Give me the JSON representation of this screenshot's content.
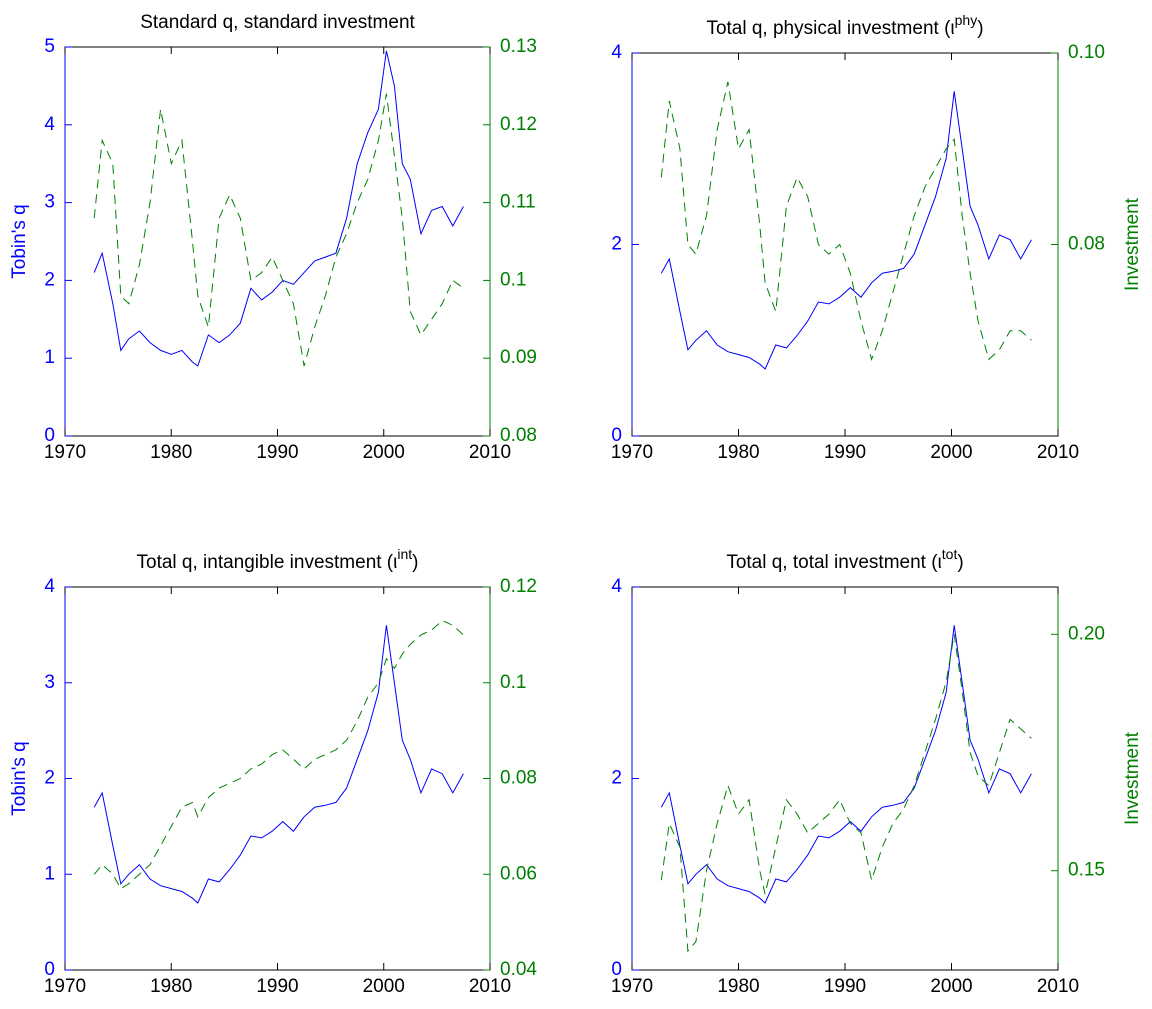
{
  "chart_data": [
    {
      "type": "line",
      "title": "Standard q, standard investment",
      "ylabel": "Tobin's q",
      "x": [
        1972.75,
        1973.5,
        1974.5,
        1975.25,
        1976,
        1977,
        1978,
        1979,
        1980,
        1981,
        1982,
        1982.5,
        1983.5,
        1984.5,
        1985.5,
        1986.5,
        1987.5,
        1988.5,
        1989.5,
        1990.5,
        1991.5,
        1992.5,
        1993.5,
        1994.5,
        1995.5,
        1996.5,
        1997.5,
        1998.5,
        1999.5,
        2000.25,
        2001,
        2001.75,
        2002.5,
        2003.5,
        2004.5,
        2005.5,
        2006.5,
        2007.5
      ],
      "xlim": [
        1970,
        2010
      ],
      "xticks": [
        1970,
        1980,
        1990,
        2000,
        2010
      ],
      "ylim": [
        0,
        5
      ],
      "yticks": [
        0,
        1,
        2,
        3,
        4,
        5
      ],
      "y2lim": [
        0.08,
        0.13
      ],
      "y2ticks": [
        0.08,
        0.09,
        0.1,
        0.11,
        0.12,
        0.13
      ],
      "series": [
        {
          "color": "#0000ff",
          "values": [
            2.1,
            2.35,
            1.7,
            1.1,
            1.25,
            1.35,
            1.2,
            1.1,
            1.05,
            1.1,
            0.95,
            0.9,
            1.3,
            1.2,
            1.3,
            1.45,
            1.9,
            1.75,
            1.85,
            2.0,
            1.95,
            2.1,
            2.25,
            2.3,
            2.35,
            2.8,
            3.5,
            3.9,
            4.2,
            4.95,
            4.5,
            3.5,
            3.3,
            2.6,
            2.9,
            2.95,
            2.7,
            2.95
          ]
        },
        {
          "color": "#008000",
          "axis": "y2",
          "values": [
            0.108,
            0.118,
            0.115,
            0.098,
            0.097,
            0.102,
            0.11,
            0.122,
            0.115,
            0.118,
            0.105,
            0.098,
            0.094,
            0.108,
            0.111,
            0.108,
            0.1,
            0.101,
            0.103,
            0.1,
            0.097,
            0.089,
            0.094,
            0.098,
            0.103,
            0.106,
            0.11,
            0.113,
            0.118,
            0.124,
            0.116,
            0.108,
            0.096,
            0.093,
            0.095,
            0.097,
            0.1,
            0.099
          ]
        }
      ]
    },
    {
      "type": "line",
      "title": "Total q, physical investment (ι",
      "title_superscript": "phy",
      "title_suffix": ")",
      "y2label": "Investment",
      "x": [
        1972.75,
        1973.5,
        1974.5,
        1975.25,
        1976,
        1977,
        1978,
        1979,
        1980,
        1981,
        1982,
        1982.5,
        1983.5,
        1984.5,
        1985.5,
        1986.5,
        1987.5,
        1988.5,
        1989.5,
        1990.5,
        1991.5,
        1992.5,
        1993.5,
        1994.5,
        1995.5,
        1996.5,
        1997.5,
        1998.5,
        1999.5,
        2000.25,
        2001,
        2001.75,
        2002.5,
        2003.5,
        2004.5,
        2005.5,
        2006.5,
        2007.5
      ],
      "xlim": [
        1970,
        2010
      ],
      "xticks": [
        1970,
        1980,
        1990,
        2000,
        2010
      ],
      "ylim": [
        0,
        4
      ],
      "yticks": [
        0,
        2,
        4
      ],
      "y2lim": [
        0.06,
        0.1
      ],
      "y2ticks": [
        0.08,
        {
          "value": 0.1,
          "label": "0.10"
        }
      ],
      "series": [
        {
          "color": "#0000ff",
          "values": [
            1.7,
            1.85,
            1.3,
            0.9,
            1.0,
            1.1,
            0.95,
            0.88,
            0.85,
            0.82,
            0.75,
            0.7,
            0.95,
            0.92,
            1.05,
            1.2,
            1.4,
            1.38,
            1.45,
            1.55,
            1.45,
            1.6,
            1.7,
            1.72,
            1.75,
            1.9,
            2.2,
            2.5,
            2.9,
            3.6,
            3.0,
            2.4,
            2.2,
            1.85,
            2.1,
            2.05,
            1.85,
            2.05
          ]
        },
        {
          "color": "#008000",
          "axis": "y2",
          "values": [
            0.087,
            0.095,
            0.09,
            0.08,
            0.079,
            0.083,
            0.092,
            0.097,
            0.09,
            0.092,
            0.082,
            0.076,
            0.073,
            0.084,
            0.087,
            0.085,
            0.08,
            0.079,
            0.08,
            0.077,
            0.072,
            0.068,
            0.071,
            0.075,
            0.079,
            0.083,
            0.086,
            0.088,
            0.09,
            0.091,
            0.083,
            0.077,
            0.072,
            0.068,
            0.069,
            0.071,
            0.071,
            0.07
          ]
        }
      ]
    },
    {
      "type": "line",
      "title": "Total q, intangible investment (ι",
      "title_superscript": "int",
      "title_suffix": ")",
      "ylabel": "Tobin's q",
      "x": [
        1972.75,
        1973.5,
        1974.5,
        1975.25,
        1976,
        1977,
        1978,
        1979,
        1980,
        1981,
        1982,
        1982.5,
        1983.5,
        1984.5,
        1985.5,
        1986.5,
        1987.5,
        1988.5,
        1989.5,
        1990.5,
        1991.5,
        1992.5,
        1993.5,
        1994.5,
        1995.5,
        1996.5,
        1997.5,
        1998.5,
        1999.5,
        2000.25,
        2001,
        2001.75,
        2002.5,
        2003.5,
        2004.5,
        2005.5,
        2006.5,
        2007.5
      ],
      "xlim": [
        1970,
        2010
      ],
      "xticks": [
        1970,
        1980,
        1990,
        2000,
        2010
      ],
      "ylim": [
        0,
        4
      ],
      "yticks": [
        0,
        1,
        2,
        3,
        4
      ],
      "y2lim": [
        0.04,
        0.12
      ],
      "y2ticks": [
        0.04,
        0.06,
        0.08,
        0.1,
        0.12
      ],
      "series": [
        {
          "color": "#0000ff",
          "values": [
            1.7,
            1.85,
            1.3,
            0.9,
            1.0,
            1.1,
            0.95,
            0.88,
            0.85,
            0.82,
            0.75,
            0.7,
            0.95,
            0.92,
            1.05,
            1.2,
            1.4,
            1.38,
            1.45,
            1.55,
            1.45,
            1.6,
            1.7,
            1.72,
            1.75,
            1.9,
            2.2,
            2.5,
            2.9,
            3.6,
            3.0,
            2.4,
            2.2,
            1.85,
            2.1,
            2.05,
            1.85,
            2.05
          ]
        },
        {
          "color": "#008000",
          "axis": "y2",
          "values": [
            0.06,
            0.062,
            0.06,
            0.057,
            0.058,
            0.06,
            0.062,
            0.066,
            0.07,
            0.074,
            0.075,
            0.072,
            0.076,
            0.078,
            0.079,
            0.08,
            0.082,
            0.083,
            0.085,
            0.086,
            0.084,
            0.082,
            0.084,
            0.085,
            0.086,
            0.088,
            0.092,
            0.097,
            0.1,
            0.105,
            0.103,
            0.106,
            0.108,
            0.11,
            0.111,
            0.113,
            0.112,
            0.11
          ]
        }
      ]
    },
    {
      "type": "line",
      "title": "Total q, total investment (ι",
      "title_superscript": "tot",
      "title_suffix": ")",
      "y2label": "Investment",
      "x": [
        1972.75,
        1973.5,
        1974.5,
        1975.25,
        1976,
        1977,
        1978,
        1979,
        1980,
        1981,
        1982,
        1982.5,
        1983.5,
        1984.5,
        1985.5,
        1986.5,
        1987.5,
        1988.5,
        1989.5,
        1990.5,
        1991.5,
        1992.5,
        1993.5,
        1994.5,
        1995.5,
        1996.5,
        1997.5,
        1998.5,
        1999.5,
        2000.25,
        2001,
        2001.75,
        2002.5,
        2003.5,
        2004.5,
        2005.5,
        2006.5,
        2007.5
      ],
      "xlim": [
        1970,
        2010
      ],
      "xticks": [
        1970,
        1980,
        1990,
        2000,
        2010
      ],
      "ylim": [
        0,
        4
      ],
      "yticks": [
        0,
        2,
        4
      ],
      "y2lim": [
        0.129,
        0.21
      ],
      "y2ticks": [
        0.15,
        {
          "value": 0.2,
          "label": "0.20"
        }
      ],
      "series": [
        {
          "color": "#0000ff",
          "values": [
            1.7,
            1.85,
            1.3,
            0.9,
            1.0,
            1.1,
            0.95,
            0.88,
            0.85,
            0.82,
            0.75,
            0.7,
            0.95,
            0.92,
            1.05,
            1.2,
            1.4,
            1.38,
            1.45,
            1.55,
            1.45,
            1.6,
            1.7,
            1.72,
            1.75,
            1.9,
            2.2,
            2.5,
            2.9,
            3.6,
            3.0,
            2.4,
            2.2,
            1.85,
            2.1,
            2.05,
            1.85,
            2.05
          ]
        },
        {
          "color": "#008000",
          "axis": "y2",
          "values": [
            0.148,
            0.16,
            0.155,
            0.133,
            0.135,
            0.15,
            0.16,
            0.168,
            0.162,
            0.165,
            0.15,
            0.145,
            0.155,
            0.165,
            0.162,
            0.158,
            0.16,
            0.162,
            0.165,
            0.16,
            0.158,
            0.148,
            0.155,
            0.16,
            0.163,
            0.168,
            0.175,
            0.182,
            0.19,
            0.2,
            0.188,
            0.175,
            0.17,
            0.168,
            0.175,
            0.182,
            0.18,
            0.178
          ]
        }
      ]
    }
  ]
}
